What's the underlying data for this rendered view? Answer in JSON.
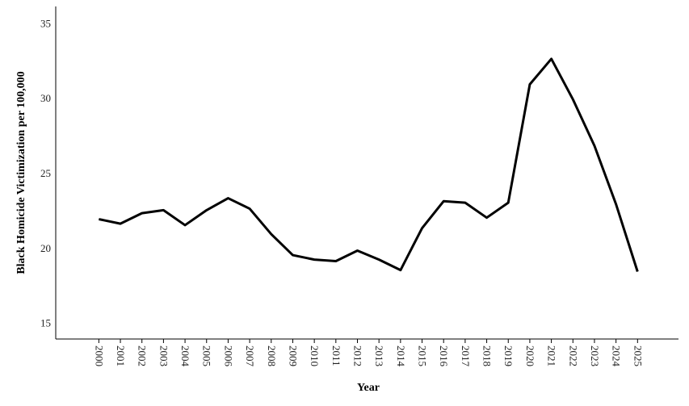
{
  "chart_data": {
    "type": "line",
    "xlabel": "Year",
    "ylabel": "Black Homicide Victimization per 100,000",
    "x": [
      2000,
      2001,
      2002,
      2003,
      2004,
      2005,
      2006,
      2007,
      2008,
      2009,
      2010,
      2011,
      2012,
      2013,
      2014,
      2015,
      2016,
      2017,
      2018,
      2019,
      2020,
      2021,
      2022,
      2023,
      2024,
      2025
    ],
    "series": [
      {
        "color": "#000000",
        "values": [
          21.9,
          21.6,
          22.3,
          22.5,
          21.5,
          22.5,
          23.3,
          22.6,
          20.9,
          19.5,
          19.2,
          19.1,
          19.8,
          19.2,
          18.5,
          21.3,
          23.1,
          23.0,
          22.0,
          23.0,
          30.9,
          32.6,
          29.9,
          26.8,
          22.9,
          18.4
        ]
      }
    ],
    "xlim": [
      1998.0,
      2026.9
    ],
    "xticks": [
      2000,
      2001,
      2002,
      2003,
      2004,
      2005,
      2006,
      2007,
      2008,
      2009,
      2010,
      2011,
      2012,
      2013,
      2014,
      2015,
      2016,
      2017,
      2018,
      2019,
      2020,
      2021,
      2022,
      2023,
      2024,
      2025
    ],
    "ylim": [
      13.9,
      36.1
    ],
    "yticks": [
      15,
      20,
      25,
      30,
      35
    ],
    "grid": false
  }
}
